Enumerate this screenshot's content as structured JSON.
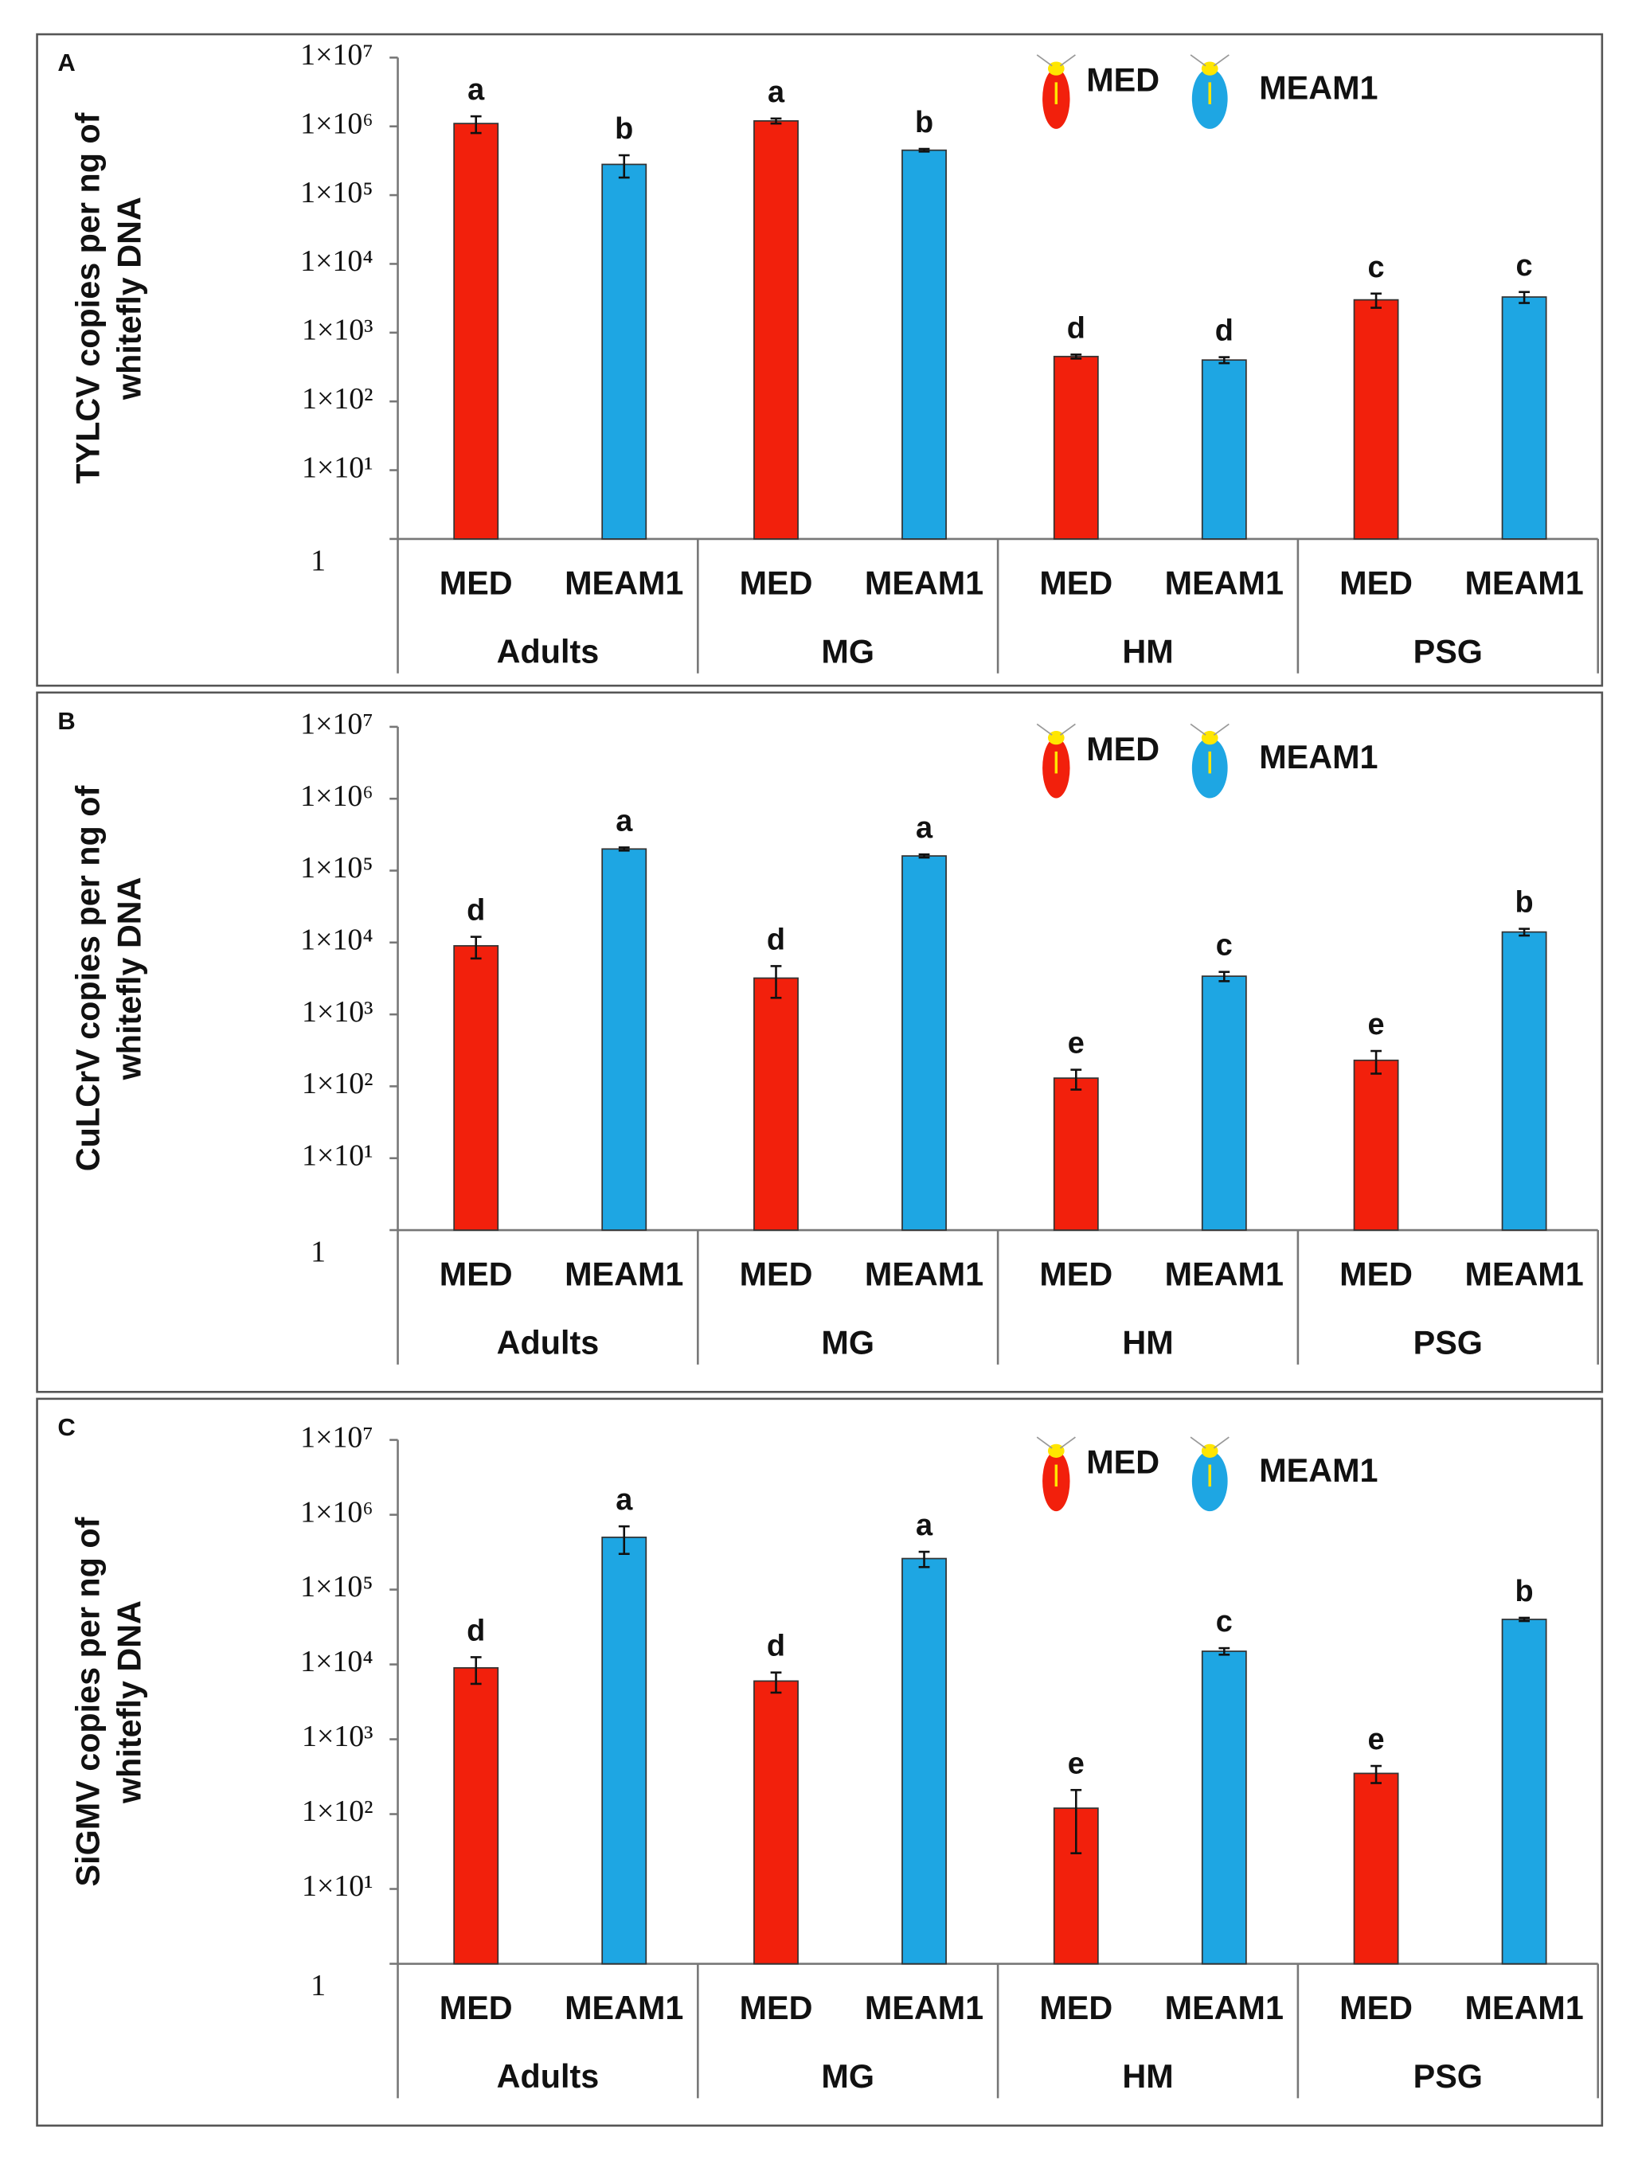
{
  "chart_data": [
    {
      "type": "bar",
      "panel": "A",
      "y_label": [
        "TYLCV copies per ng of",
        "whitefly DNA"
      ],
      "categories": [
        "Adults",
        "MG",
        "HM",
        "PSG"
      ],
      "series": [
        {
          "name": "MED",
          "color": "#f2200c",
          "values": [
            1100000,
            1200000,
            450,
            3000
          ],
          "errors": [
            300000,
            100000,
            30,
            700
          ],
          "letters": [
            "a",
            "a",
            "d",
            "c"
          ]
        },
        {
          "name": "MEAM1",
          "color": "#1ea6e3",
          "values": [
            280000,
            450000,
            400,
            3300
          ],
          "errors": [
            100000,
            20000,
            40,
            600
          ],
          "letters": [
            "b",
            "b",
            "d",
            "c"
          ]
        }
      ],
      "log_scale": true,
      "ylim": [
        1,
        10000000
      ],
      "yticks": [
        1,
        {
          "value": 10,
          "label": "1×10¹"
        },
        {
          "value": 100,
          "label": "1×10²"
        },
        {
          "value": 1000,
          "label": "1×10³"
        },
        {
          "value": 10000,
          "label": "1×10⁴"
        },
        {
          "value": 100000,
          "label": "1×10⁵"
        },
        {
          "value": 1000000,
          "label": "1×10⁶"
        },
        {
          "value": 10000000,
          "label": "1×10⁷"
        }
      ],
      "legend": "top right"
    },
    {
      "type": "bar",
      "panel": "B",
      "y_label": [
        "CuLCrV copies per ng of",
        "whitefly DNA"
      ],
      "categories": [
        "Adults",
        "MG",
        "HM",
        "PSG"
      ],
      "series": [
        {
          "name": "MED",
          "color": "#f2200c",
          "values": [
            9000,
            3200,
            130,
            230
          ],
          "errors": [
            3000,
            1500,
            40,
            80
          ],
          "letters": [
            "d",
            "d",
            "e",
            "e"
          ]
        },
        {
          "name": "MEAM1",
          "color": "#1ea6e3",
          "values": [
            200000,
            160000,
            3400,
            14000
          ],
          "errors": [
            10000,
            8000,
            500,
            1500
          ],
          "letters": [
            "a",
            "a",
            "c",
            "b"
          ]
        }
      ],
      "log_scale": true,
      "ylim": [
        1,
        10000000
      ],
      "yticks": [
        1,
        {
          "value": 10,
          "label": "1×10¹"
        },
        {
          "value": 100,
          "label": "1×10²"
        },
        {
          "value": 1000,
          "label": "1×10³"
        },
        {
          "value": 10000,
          "label": "1×10⁴"
        },
        {
          "value": 100000,
          "label": "1×10⁵"
        },
        {
          "value": 1000000,
          "label": "1×10⁶"
        },
        {
          "value": 10000000,
          "label": "1×10⁷"
        }
      ],
      "legend": "top right"
    },
    {
      "type": "bar",
      "panel": "C",
      "y_label": [
        "SiGMV copies per ng of",
        "whitefly DNA"
      ],
      "categories": [
        "Adults",
        "MG",
        "HM",
        "PSG"
      ],
      "series": [
        {
          "name": "MED",
          "color": "#f2200c",
          "values": [
            9000,
            6000,
            120,
            350
          ],
          "errors": [
            3500,
            1800,
            90,
            90
          ],
          "letters": [
            "d",
            "d",
            "e",
            "e"
          ]
        },
        {
          "name": "MEAM1",
          "color": "#1ea6e3",
          "values": [
            500000,
            260000,
            15000,
            40000
          ],
          "errors": [
            200000,
            60000,
            1500,
            2000
          ],
          "letters": [
            "a",
            "a",
            "c",
            "b"
          ]
        }
      ],
      "log_scale": true,
      "ylim": [
        1,
        10000000
      ],
      "yticks": [
        1,
        {
          "value": 10,
          "label": "1×10¹"
        },
        {
          "value": 100,
          "label": "1×10²"
        },
        {
          "value": 1000,
          "label": "1×10³"
        },
        {
          "value": 10000,
          "label": "1×10⁴"
        },
        {
          "value": 100000,
          "label": "1×10⁵"
        },
        {
          "value": 1000000,
          "label": "1×10⁶"
        },
        {
          "value": 10000000,
          "label": "1×10⁷"
        }
      ],
      "legend": "top right"
    }
  ]
}
